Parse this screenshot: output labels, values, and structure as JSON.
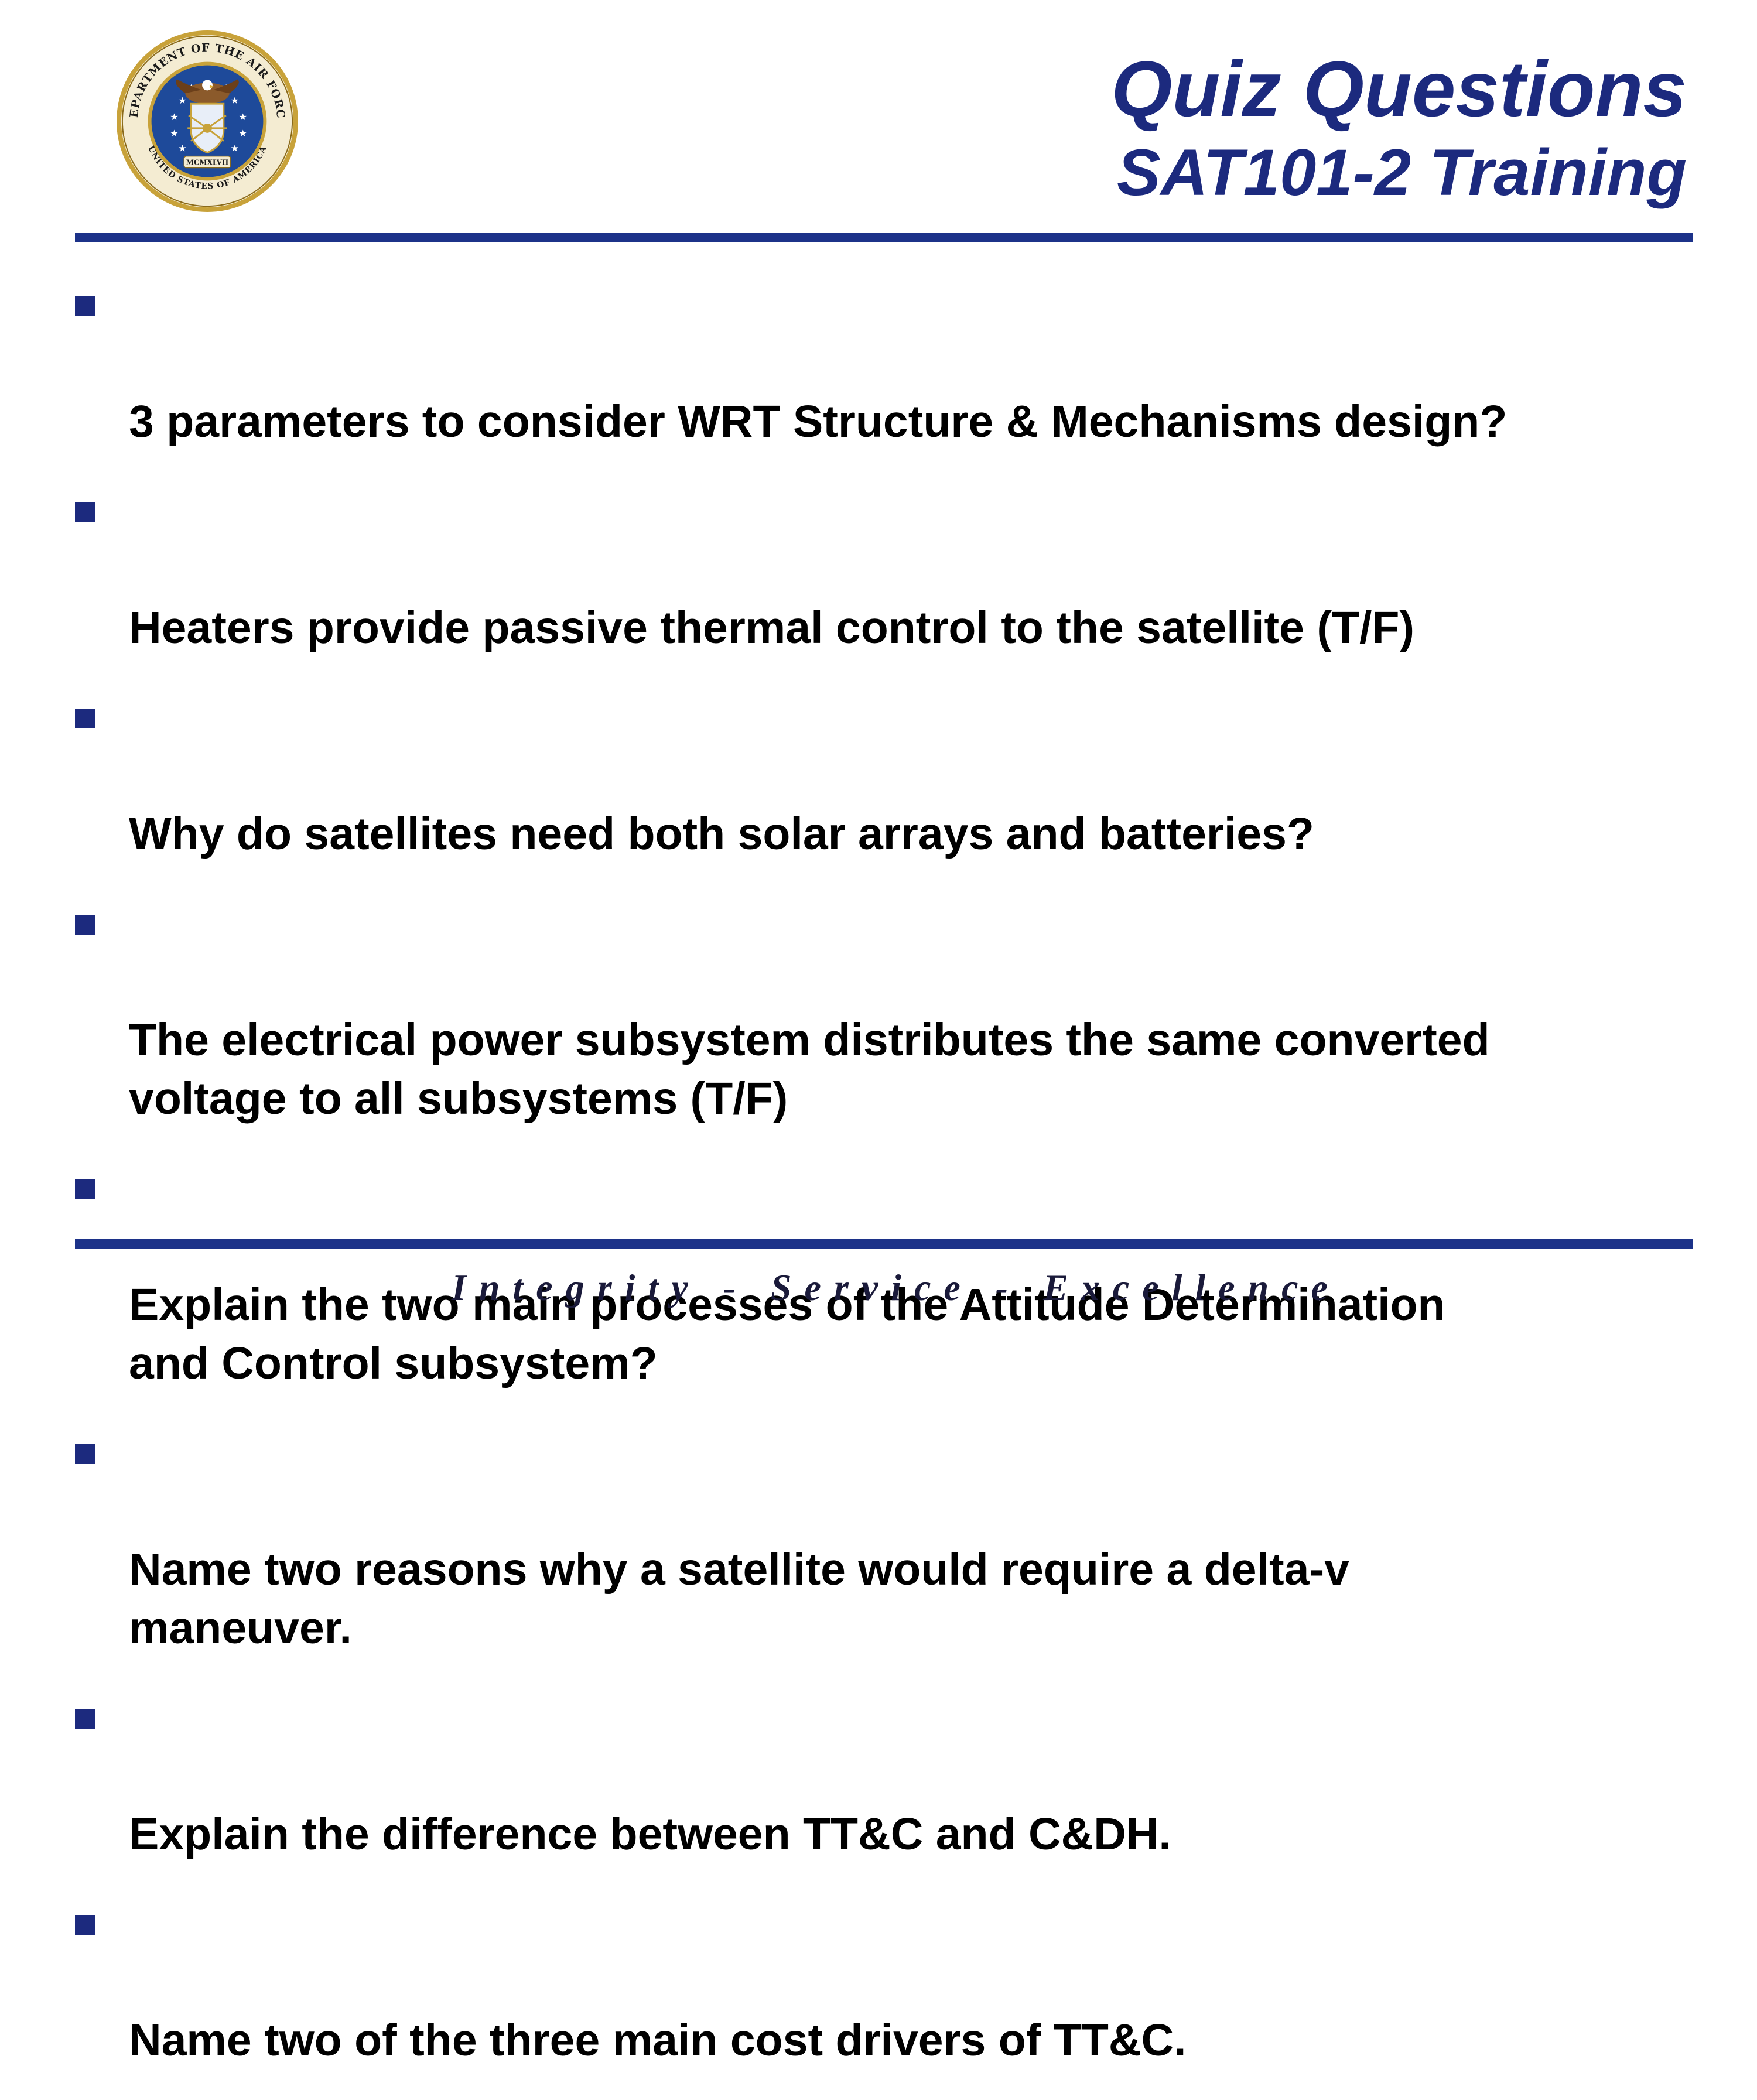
{
  "header": {
    "title": "Quiz Questions",
    "subtitle": "SAT101-2 Training",
    "seal": {
      "icon": "air-force-seal-icon",
      "ring_text_top": "DEPARTMENT OF THE AIR FORCE",
      "ring_text_bottom": "UNITED STATES OF AMERICA",
      "year_text": "MCMXLVII"
    }
  },
  "questions": [
    "3 parameters to consider WRT Structure & Mechanisms design?",
    "Heaters provide passive thermal control to the satellite (T/F)",
    "Why do satellites need both solar arrays and batteries?",
    "The electrical power subsystem distributes the same converted\nvoltage to all subsystems (T/F)",
    "Explain the two main processes of the Attitude Determination\nand Control subsystem?",
    "Name two reasons why a satellite would require a delta-v\nmaneuver.",
    "Explain the difference between TT&C and C&DH.",
    "Name two of the three main cost drivers of TT&C."
  ],
  "footer": {
    "motto": "Integrity - Service - Excellence"
  },
  "colors": {
    "title": "#1c2a7e",
    "rule": "#1c3289",
    "bullet": "#1c2a7e",
    "seal_gold": "#c8a23a",
    "seal_blue": "#1e4a9a"
  }
}
